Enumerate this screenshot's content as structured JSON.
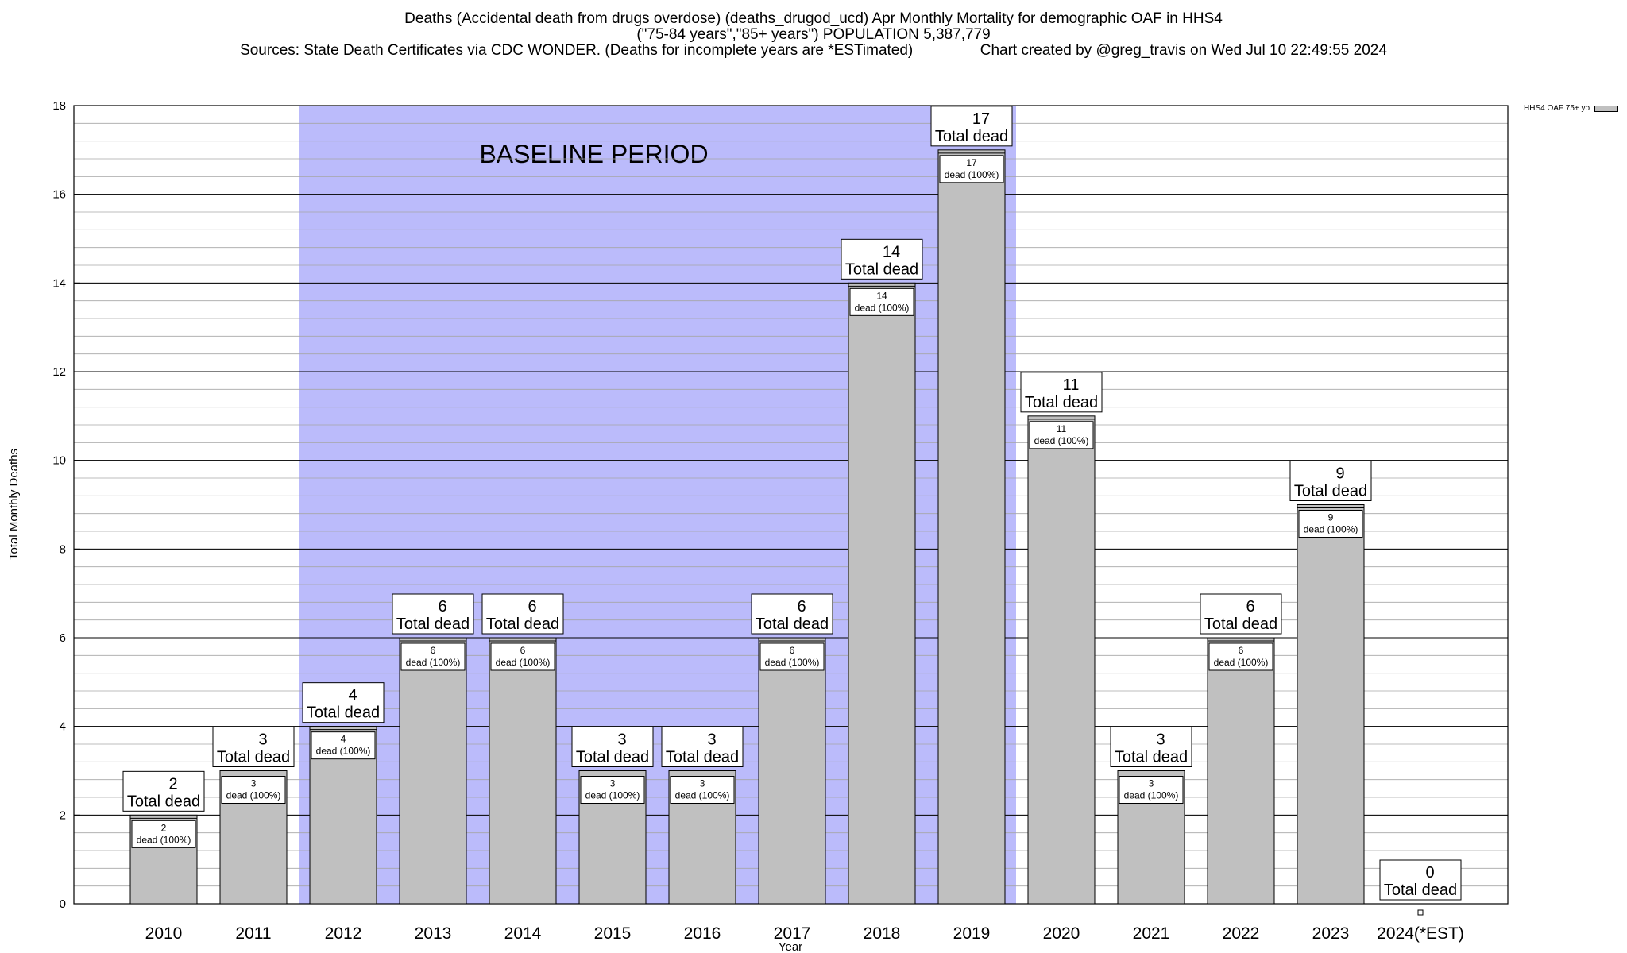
{
  "header": {
    "title_line1": "Deaths (Accidental death from drugs overdose) (deaths_drugod_ucd) Apr Monthly Mortality for demographic OAF in HHS4",
    "title_line2": "(\"75-84 years\",\"85+ years\") POPULATION 5,387,779",
    "title_line3": "Sources: State Death Certificates via CDC WONDER. (Deaths for incomplete years are *ESTimated)                Chart created by @greg_travis on Wed Jul 10 22:49:55 2024"
  },
  "chart_data": {
    "type": "bar",
    "title": "Deaths (Accidental death from drugs overdose) (deaths_drugod_ucd) Apr Monthly Mortality for demographic OAF in HHS4",
    "xlabel": "Year",
    "ylabel": "Total Monthly Deaths",
    "ylim": [
      0,
      18
    ],
    "yticks": [
      0,
      2,
      4,
      6,
      8,
      10,
      12,
      14,
      16,
      18
    ],
    "grid": "horizontal",
    "categories": [
      "2010",
      "2011",
      "2012",
      "2013",
      "2014",
      "2015",
      "2016",
      "2017",
      "2018",
      "2019",
      "2020",
      "2021",
      "2022",
      "2023",
      "2024(*EST)"
    ],
    "series": [
      {
        "name": "HHS4 OAF 75+ yo",
        "values": [
          2,
          3,
          4,
          6,
          6,
          3,
          3,
          6,
          14,
          17,
          11,
          3,
          6,
          9,
          0
        ]
      }
    ],
    "total_labels": [
      "2",
      "3",
      "4",
      "6",
      "6",
      "3",
      "3",
      "6",
      "14",
      "17",
      "11",
      "3",
      "6",
      "9",
      "0"
    ],
    "total_label_suffix": "Total dead",
    "segment_labels": [
      "2",
      "3",
      "4",
      "6",
      "6",
      "3",
      "3",
      "6",
      "14",
      "17",
      "11",
      "3",
      "6",
      "9",
      ""
    ],
    "segment_label_suffix": "dead (100%)",
    "baseline_period": {
      "label": "BASELINE PERIOD",
      "start": "2012",
      "end": "2019"
    },
    "legend": {
      "label": "HHS4 OAF 75+ yo",
      "position": "top-right"
    },
    "colors": {
      "bar": "#c0c0c0",
      "baseline": "#bbbbfb",
      "grid": "#a6a6a6"
    }
  }
}
